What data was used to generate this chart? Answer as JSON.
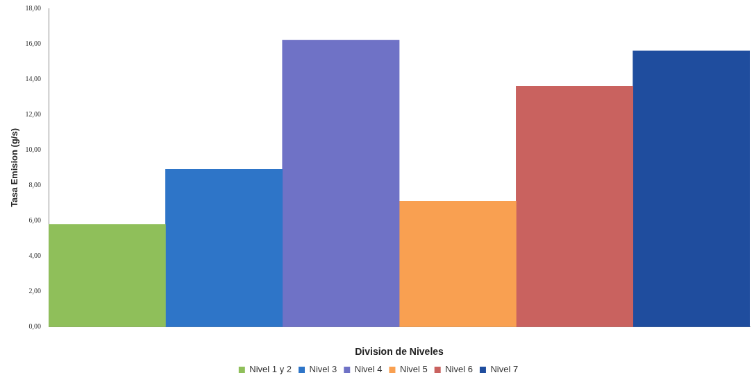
{
  "chart_data": {
    "type": "bar",
    "xlabel": "Division de Niveles",
    "ylabel": "Tasa Emision (g/s)",
    "categories": [
      null
    ],
    "series": [
      {
        "name": "Nivel 1 y 2",
        "color": "#8fbf5a",
        "values": [
          5.8
        ]
      },
      {
        "name": "Nivel 3",
        "color": "#2e75c8",
        "values": [
          8.9
        ]
      },
      {
        "name": "Nivel 4",
        "color": "#6f72c6",
        "values": [
          16.2
        ]
      },
      {
        "name": "Nivel 5",
        "color": "#f9a051",
        "values": [
          7.1
        ]
      },
      {
        "name": "Nivel 6",
        "color": "#c9625f",
        "values": [
          13.6
        ]
      },
      {
        "name": "Nivel 7",
        "color": "#1f4d9e",
        "values": [
          15.6
        ]
      }
    ],
    "ylim": [
      0,
      18
    ],
    "yticks": [
      {
        "value": 0,
        "label": "0,00"
      },
      {
        "value": 2,
        "label": "2,00"
      },
      {
        "value": 4,
        "label": "4,00"
      },
      {
        "value": 6,
        "label": "6,00"
      },
      {
        "value": 8,
        "label": "8,00"
      },
      {
        "value": 10,
        "label": "10,00"
      },
      {
        "value": 12,
        "label": "12,00"
      },
      {
        "value": 14,
        "label": "14,00"
      },
      {
        "value": 16,
        "label": "16,00"
      },
      {
        "value": 18,
        "label": "18,00"
      }
    ],
    "grid": false,
    "legend": "bottom"
  }
}
